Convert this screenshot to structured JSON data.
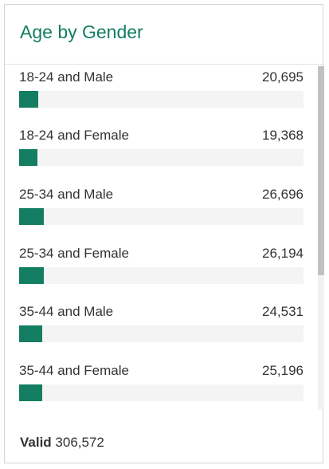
{
  "card": {
    "title": "Age by Gender"
  },
  "colors": {
    "accent": "#137e61",
    "track": "#f4f4f4",
    "text": "#333333"
  },
  "items": [
    {
      "label": "18-24 and Male",
      "value": "20,695",
      "count": 20695
    },
    {
      "label": "18-24 and Female",
      "value": "19,368",
      "count": 19368
    },
    {
      "label": "25-34 and Male",
      "value": "26,696",
      "count": 26696
    },
    {
      "label": "25-34 and Female",
      "value": "26,194",
      "count": 26194
    },
    {
      "label": "35-44 and Male",
      "value": "24,531",
      "count": 24531
    },
    {
      "label": "35-44 and Female",
      "value": "25,196",
      "count": 25196
    }
  ],
  "footer": {
    "label": "Valid",
    "value": "306,572",
    "total": 306572
  }
}
